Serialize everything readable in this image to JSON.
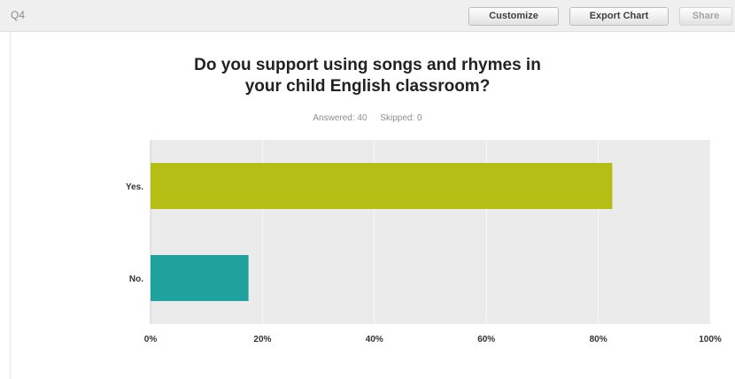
{
  "header": {
    "question_label": "Q4",
    "customize_label": "Customize",
    "export_label": "Export Chart",
    "share_label": "Share"
  },
  "colors": {
    "bar_yes": "#b5be14",
    "bar_no": "#1fa19e",
    "plot_bg": "#ebebeb",
    "grid": "#f8f8f8"
  },
  "chart_data": {
    "type": "bar",
    "orientation": "horizontal",
    "title_line1": "Do you support using songs and rhymes in",
    "title_line2": "your child English classroom?",
    "answered_label": "Answered: 40",
    "skipped_label": "Skipped: 0",
    "categories": [
      "Yes.",
      "No."
    ],
    "values": [
      82.5,
      17.5
    ],
    "unit": "%",
    "xlim": [
      0,
      100
    ],
    "xticks": [
      {
        "value": 0,
        "label": "0%"
      },
      {
        "value": 20,
        "label": "20%"
      },
      {
        "value": 40,
        "label": "40%"
      },
      {
        "value": 60,
        "label": "60%"
      },
      {
        "value": 80,
        "label": "80%"
      },
      {
        "value": 100,
        "label": "100%"
      }
    ],
    "grid": true,
    "legend": "none"
  }
}
